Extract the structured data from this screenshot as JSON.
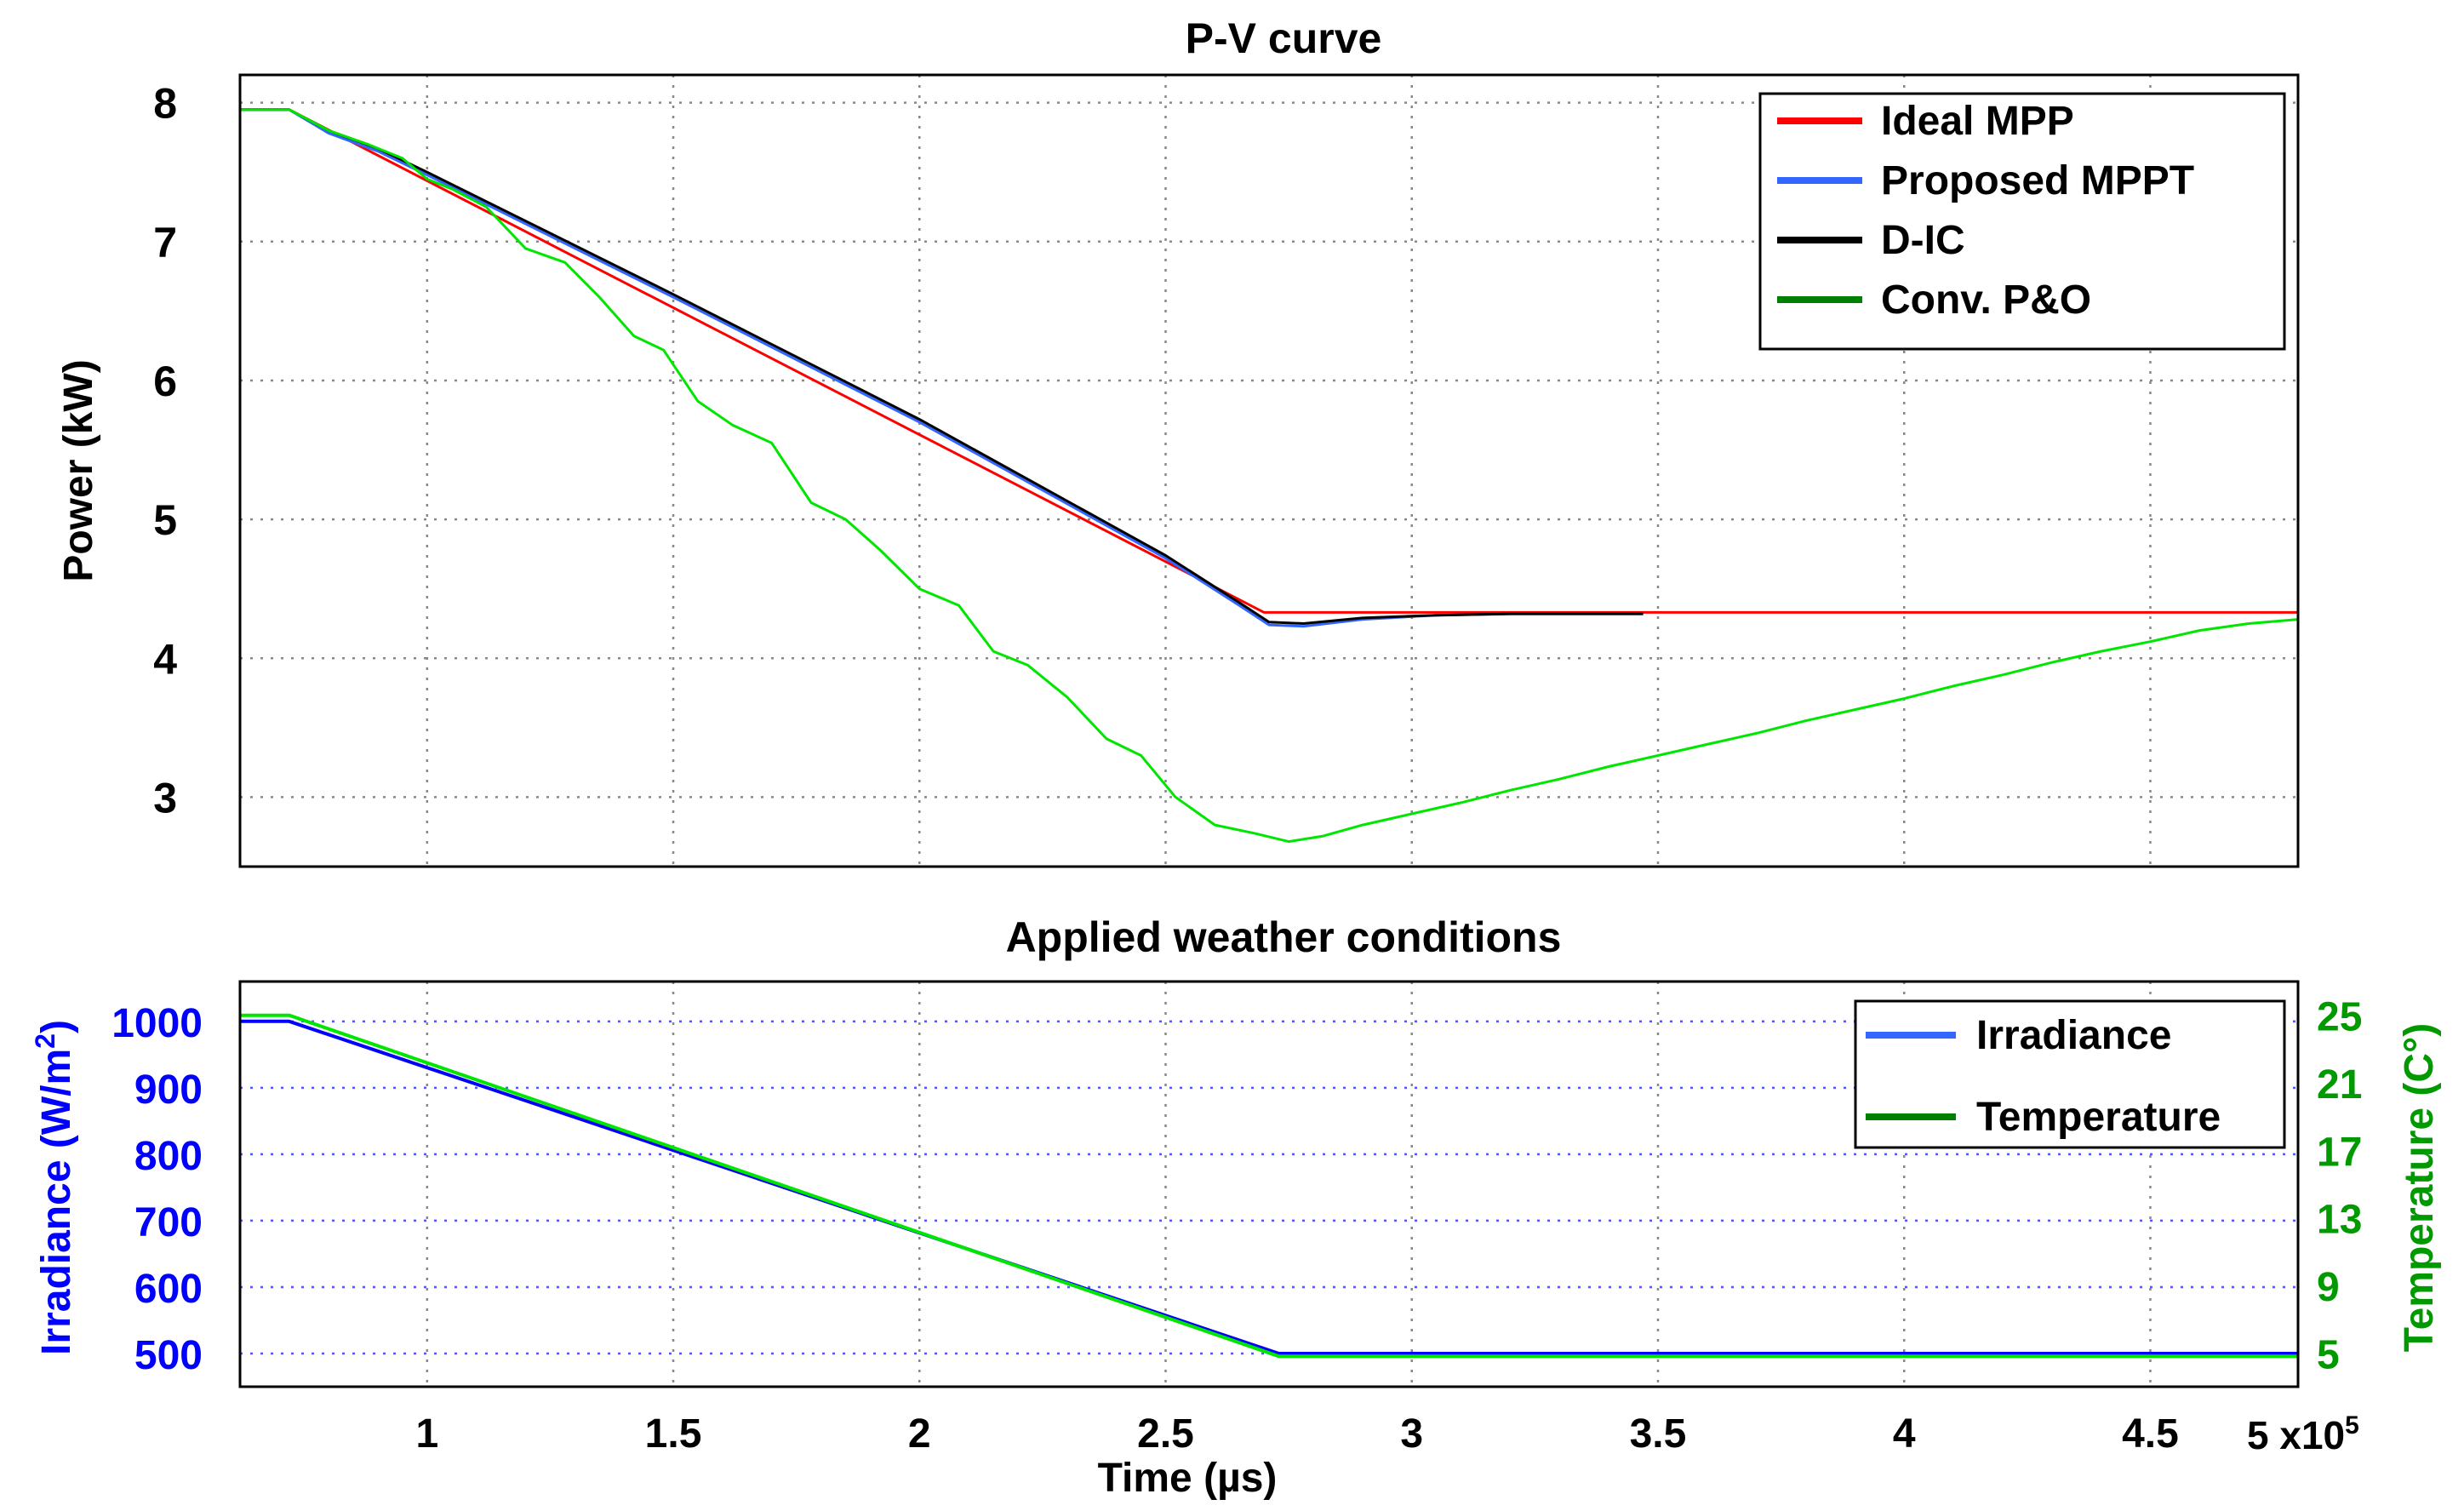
{
  "chart_data": [
    {
      "type": "line",
      "title": "P-V curve",
      "xlabel": "",
      "ylabel": "Power (kW)",
      "xlim": [
        0.62,
        4.8
      ],
      "ylim": [
        2.5,
        8.2
      ],
      "yticks": [
        3,
        4,
        5,
        6,
        7,
        8
      ],
      "xgrid": [
        1,
        1.5,
        2,
        2.5,
        3,
        3.5,
        4,
        4.5
      ],
      "grid": true,
      "legend_position": "top-right",
      "series": [
        {
          "name": "Ideal MPP",
          "color": "#ff0000",
          "x": [
            0.62,
            0.72,
            2.7,
            4.8
          ],
          "y": [
            7.95,
            7.95,
            4.33,
            4.33
          ]
        },
        {
          "name": "Proposed MPPT",
          "color": "#3366ff",
          "x": [
            0.62,
            0.72,
            0.8,
            0.9,
            1.0,
            1.5,
            2.0,
            2.5,
            2.65,
            2.71,
            2.78,
            2.9,
            3.05,
            3.2,
            3.47
          ],
          "y": [
            7.95,
            7.95,
            7.78,
            7.65,
            7.48,
            6.6,
            5.7,
            4.72,
            4.38,
            4.24,
            4.23,
            4.28,
            4.31,
            4.32,
            4.32
          ]
        },
        {
          "name": "D-IC",
          "color": "#000000",
          "x": [
            0.62,
            0.72,
            0.8,
            0.9,
            1.0,
            1.5,
            2.0,
            2.5,
            2.65,
            2.71,
            2.78,
            2.9,
            3.05,
            3.2,
            3.47
          ],
          "y": [
            7.95,
            7.95,
            7.8,
            7.67,
            7.5,
            6.62,
            5.72,
            4.74,
            4.4,
            4.26,
            4.25,
            4.29,
            4.31,
            4.32,
            4.32
          ]
        },
        {
          "name": "Conv. P&O",
          "color": "#00e600",
          "x": [
            0.62,
            0.72,
            0.8,
            0.88,
            0.95,
            1.0,
            1.05,
            1.12,
            1.2,
            1.28,
            1.35,
            1.42,
            1.48,
            1.55,
            1.62,
            1.7,
            1.78,
            1.85,
            1.92,
            2.0,
            2.08,
            2.15,
            2.22,
            2.3,
            2.38,
            2.45,
            2.52,
            2.6,
            2.68,
            2.75,
            2.82,
            2.9,
            3.0,
            3.1,
            3.2,
            3.3,
            3.4,
            3.5,
            3.6,
            3.7,
            3.8,
            3.9,
            4.0,
            4.1,
            4.2,
            4.3,
            4.4,
            4.5,
            4.6,
            4.7,
            4.8
          ],
          "y": [
            7.95,
            7.95,
            7.8,
            7.7,
            7.6,
            7.45,
            7.38,
            7.25,
            6.95,
            6.85,
            6.6,
            6.32,
            6.22,
            5.85,
            5.68,
            5.55,
            5.12,
            5.0,
            4.78,
            4.5,
            4.38,
            4.05,
            3.95,
            3.72,
            3.42,
            3.3,
            3.0,
            2.8,
            2.74,
            2.68,
            2.72,
            2.8,
            2.88,
            2.96,
            3.05,
            3.13,
            3.22,
            3.3,
            3.38,
            3.46,
            3.55,
            3.63,
            3.71,
            3.8,
            3.88,
            3.97,
            4.05,
            4.12,
            4.2,
            4.25,
            4.28
          ]
        }
      ]
    },
    {
      "type": "line",
      "title": "Applied weather conditions",
      "xlabel": "Time (µs)",
      "x_multiplier_label": "5 x10",
      "x_multiplier_exponent": "5",
      "xlim": [
        0.62,
        4.8
      ],
      "xticks": [
        1,
        1.5,
        2,
        2.5,
        3,
        3.5,
        4,
        4.5
      ],
      "xtick_labels": [
        "1",
        "1.5",
        "2",
        "2.5",
        "3",
        "3.5",
        "4",
        "4.5"
      ],
      "ylabel_left": "Irradiance (W/m",
      "ylabel_left_superscript": "2",
      "ylabel_left_close": ")",
      "ylim_left": [
        450,
        1060
      ],
      "yticks_left": [
        500,
        600,
        700,
        800,
        900,
        1000
      ],
      "ylabel_right": "Temperature (C°)",
      "ylim_right": [
        3,
        27
      ],
      "yticks_right": [
        5,
        9,
        13,
        17,
        21,
        25
      ],
      "grid": true,
      "legend_position": "top-right",
      "series": [
        {
          "name": "Irradiance",
          "axis": "left",
          "color": "#0000ff",
          "x": [
            0.62,
            0.72,
            2.73,
            4.8
          ],
          "y": [
            1000,
            1000,
            500,
            500
          ]
        },
        {
          "name": "Temperature",
          "axis": "right",
          "color": "#00e600",
          "x": [
            0.62,
            0.72,
            2.73,
            4.8
          ],
          "y": [
            25,
            25,
            4.8,
            4.8
          ]
        }
      ],
      "legend_swatch_colors": {
        "Irradiance": "#3366ff",
        "Temperature": "#008000"
      }
    }
  ],
  "legend_swatch_colors_top": {
    "Ideal MPP": "#ff0000",
    "Proposed MPPT": "#3366ff",
    "D-IC": "#000000",
    "Conv. P&O": "#008000"
  },
  "axis_colors": {
    "left": "#0000ff",
    "right": "#009900",
    "grid": "#888888",
    "frame": "#000000"
  }
}
